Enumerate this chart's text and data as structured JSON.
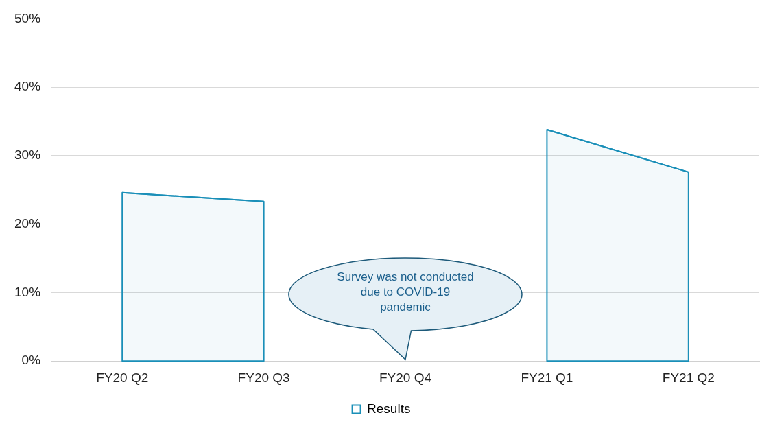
{
  "chart_data": {
    "type": "area",
    "categories": [
      "FY20 Q2",
      "FY20 Q3",
      "FY20 Q4",
      "FY21 Q1",
      "FY21 Q2"
    ],
    "series": [
      {
        "name": "Results",
        "color": "#1a8fb8",
        "values": [
          24.6,
          23.3,
          null,
          33.8,
          27.6
        ]
      }
    ],
    "ylim": [
      0,
      50
    ],
    "yticks": [
      {
        "value": 0,
        "label": "0%"
      },
      {
        "value": 10,
        "label": "10%"
      },
      {
        "value": 20,
        "label": "20%"
      },
      {
        "value": 30,
        "label": "30%"
      },
      {
        "value": 40,
        "label": "40%"
      },
      {
        "value": 50,
        "label": "50%"
      }
    ],
    "grid": "y",
    "legend": "bottom",
    "annotations": [
      "Survey was not conducted due to COVID-19 pandemic"
    ]
  }
}
